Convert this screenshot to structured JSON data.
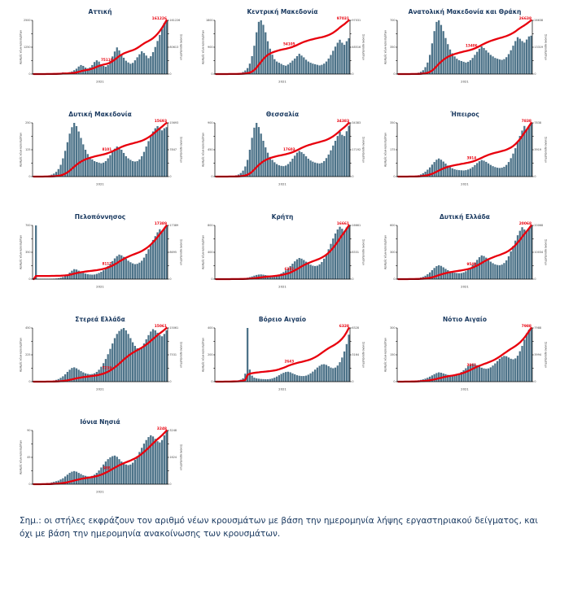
{
  "note": "Σημ.:  οι στήλες εκφράζουν τον αριθμό νέων κρουσμάτων με βάση την ημερομηνία λήψης εργαστηριακού δείγματος, και όχι με βάση την ημερομηνία ανακοίνωσης των κρουσμάτων.",
  "colors": {
    "bar": "#4d7389",
    "line": "#e8000d",
    "title": "#17375e",
    "axis": "#000000",
    "tick_text": "#444444",
    "label_red": "#e8000d"
  },
  "chart_data": [
    {
      "id": "attiki",
      "type": "bar+line",
      "title": "Αττική",
      "ylabel_left": "Αριθμός νέων κρουσμάτων",
      "ylabel_right": "Σύνολο κρουσμάτων",
      "xlabel": "2021",
      "total_label": "161226",
      "mid_label": "75110",
      "ylim_left": [
        0,
        2500
      ],
      "values": [
        2,
        3,
        2,
        4,
        5,
        8,
        10,
        12,
        15,
        20,
        30,
        45,
        60,
        80,
        70,
        60,
        90,
        120,
        180,
        250,
        350,
        420,
        380,
        300,
        260,
        310,
        420,
        560,
        640,
        580,
        460,
        380,
        340,
        420,
        610,
        820,
        1050,
        1240,
        1100,
        920,
        760,
        620,
        540,
        480,
        520,
        640,
        780,
        920,
        1060,
        980,
        860,
        740,
        830,
        1020,
        1260,
        1540,
        1820,
        2100,
        2380,
        2500
      ]
    },
    {
      "id": "kentriki-makedonia",
      "type": "bar+line",
      "title": "Κεντρική Μακεδονία",
      "ylabel_left": "Αριθμός νέων κρουσμάτων",
      "ylabel_right": "Σύνολο κρουσμάτων",
      "xlabel": "2021",
      "total_label": "97031",
      "mid_label": "54105",
      "ylim_left": [
        0,
        1800
      ],
      "values": [
        1,
        2,
        2,
        3,
        4,
        6,
        8,
        10,
        14,
        18,
        25,
        40,
        70,
        120,
        200,
        350,
        600,
        950,
        1400,
        1750,
        1800,
        1650,
        1400,
        1100,
        850,
        650,
        500,
        420,
        380,
        340,
        300,
        280,
        320,
        380,
        450,
        520,
        600,
        680,
        620,
        560,
        480,
        420,
        380,
        350,
        330,
        310,
        290,
        310,
        350,
        420,
        520,
        640,
        780,
        920,
        1050,
        1150,
        1050,
        980,
        1100,
        1200
      ]
    },
    {
      "id": "anatoliki-makedonia-thraki",
      "type": "bar+line",
      "title": "Ανατολική Μακεδονία και Θράκη",
      "ylabel_left": "Αριθμός νέων κρουσμάτων",
      "ylabel_right": "Σύνολο κρουσμάτων",
      "xlabel": "2021",
      "total_label": "26638",
      "mid_label": "13406",
      "ylim_left": [
        0,
        700
      ],
      "values": [
        0,
        1,
        1,
        2,
        2,
        3,
        5,
        8,
        12,
        18,
        30,
        50,
        90,
        150,
        250,
        400,
        560,
        680,
        700,
        640,
        560,
        470,
        390,
        320,
        270,
        230,
        200,
        180,
        170,
        160,
        150,
        160,
        180,
        210,
        250,
        290,
        330,
        360,
        340,
        310,
        280,
        250,
        230,
        210,
        200,
        190,
        185,
        195,
        220,
        260,
        310,
        370,
        430,
        480,
        460,
        430,
        410,
        450,
        490,
        500
      ]
    },
    {
      "id": "dytiki-makedonia",
      "type": "bar+line",
      "title": "Δυτική Μακεδονία",
      "ylabel_left": "Αριθμός νέων κρουσμάτων",
      "ylabel_right": "Σύνολο κρουσμάτων",
      "xlabel": "2021",
      "total_label": "15693",
      "mid_label": "8101",
      "ylim_left": [
        0,
        250
      ],
      "values": [
        0,
        0,
        1,
        1,
        2,
        3,
        4,
        6,
        9,
        14,
        22,
        35,
        55,
        85,
        120,
        160,
        200,
        230,
        250,
        235,
        210,
        180,
        150,
        125,
        105,
        90,
        80,
        72,
        68,
        65,
        62,
        65,
        72,
        85,
        100,
        115,
        130,
        140,
        135,
        125,
        110,
        95,
        85,
        78,
        72,
        70,
        72,
        80,
        95,
        115,
        140,
        165,
        190,
        210,
        225,
        235,
        225,
        215,
        225,
        230
      ]
    },
    {
      "id": "thessalia",
      "type": "bar+line",
      "title": "Θεσσαλία",
      "ylabel_left": "Αριθμός νέων κρουσμάτων",
      "ylabel_right": "Σύνολο κρουσμάτων",
      "xlabel": "2021",
      "total_label": "34383",
      "mid_label": "17603",
      "ylim_left": [
        0,
        900
      ],
      "values": [
        0,
        1,
        1,
        2,
        3,
        4,
        6,
        9,
        14,
        22,
        35,
        60,
        100,
        170,
        280,
        450,
        650,
        820,
        900,
        830,
        720,
        600,
        490,
        400,
        330,
        280,
        240,
        210,
        190,
        180,
        175,
        185,
        210,
        250,
        300,
        350,
        400,
        430,
        410,
        380,
        340,
        300,
        270,
        250,
        235,
        225,
        220,
        230,
        260,
        310,
        370,
        440,
        520,
        600,
        680,
        750,
        700,
        680,
        760,
        850
      ]
    },
    {
      "id": "ipeiros",
      "type": "bar+line",
      "title": "Ήπειρος",
      "ylabel_left": "Αριθμός νέων κρουσμάτων",
      "ylabel_right": "Σύνολο κρουσμάτων",
      "xlabel": "2021",
      "total_label": "7838",
      "mid_label": "3914",
      "ylim_left": [
        0,
        350
      ],
      "values": [
        0,
        0,
        1,
        1,
        1,
        2,
        3,
        4,
        6,
        9,
        14,
        22,
        32,
        45,
        60,
        78,
        95,
        110,
        118,
        110,
        98,
        85,
        72,
        62,
        54,
        48,
        44,
        42,
        41,
        40,
        42,
        46,
        52,
        62,
        75,
        88,
        100,
        108,
        104,
        96,
        86,
        76,
        68,
        62,
        58,
        56,
        58,
        64,
        76,
        95,
        120,
        150,
        185,
        225,
        265,
        300,
        330,
        310,
        330,
        350
      ]
    },
    {
      "id": "peloponnisos",
      "type": "bar+line",
      "title": "Πελοπόννησος",
      "ylabel_left": "Αριθμός νέων κρουσμάτων",
      "ylabel_right": "Σύνολο κρουσμάτων",
      "xlabel": "2021",
      "total_label": "17389",
      "mid_label": "8117",
      "ylim_left": [
        0,
        700
      ],
      "values": [
        5,
        700,
        4,
        3,
        2,
        2,
        3,
        4,
        5,
        6,
        8,
        12,
        18,
        28,
        42,
        60,
        85,
        110,
        130,
        125,
        110,
        95,
        82,
        72,
        65,
        60,
        58,
        60,
        68,
        80,
        95,
        115,
        140,
        170,
        200,
        235,
        270,
        300,
        320,
        310,
        290,
        265,
        240,
        220,
        205,
        195,
        200,
        215,
        240,
        280,
        330,
        390,
        450,
        510,
        560,
        610,
        650,
        620,
        660,
        700
      ]
    },
    {
      "id": "kriti",
      "type": "bar+line",
      "title": "Κρήτη",
      "ylabel_left": "Αριθμός νέων κρουσμάτων",
      "ylabel_right": "Σύνολο κρουσμάτων",
      "xlabel": "2021",
      "total_label": "16661",
      "mid_label": "6382",
      "ylim_left": [
        0,
        800
      ],
      "values": [
        0,
        0,
        1,
        1,
        1,
        2,
        2,
        3,
        4,
        5,
        7,
        9,
        12,
        16,
        22,
        30,
        40,
        52,
        62,
        68,
        70,
        66,
        60,
        55,
        52,
        50,
        52,
        58,
        68,
        85,
        105,
        130,
        160,
        195,
        230,
        265,
        295,
        315,
        305,
        285,
        260,
        235,
        215,
        200,
        195,
        200,
        220,
        255,
        305,
        370,
        445,
        525,
        605,
        680,
        740,
        780,
        750,
        720,
        770,
        800
      ]
    },
    {
      "id": "dytiki-ellada",
      "type": "bar+line",
      "title": "Δυτική Ελλάδα",
      "ylabel_left": "Αριθμός νέων κρουσμάτων",
      "ylabel_right": "Σύνολο κρουσμάτων",
      "xlabel": "2021",
      "total_label": "20068",
      "mid_label": "9540",
      "ylim_left": [
        0,
        600
      ],
      "values": [
        0,
        1,
        1,
        2,
        2,
        3,
        4,
        6,
        8,
        12,
        18,
        26,
        38,
        55,
        75,
        100,
        125,
        145,
        155,
        148,
        132,
        115,
        100,
        88,
        78,
        72,
        68,
        66,
        68,
        75,
        88,
        105,
        128,
        155,
        185,
        215,
        245,
        265,
        258,
        240,
        218,
        195,
        178,
        165,
        158,
        155,
        162,
        180,
        210,
        255,
        310,
        370,
        430,
        490,
        540,
        580,
        555,
        530,
        565,
        600
      ]
    },
    {
      "id": "sterea-ellada",
      "type": "bar+line",
      "title": "Στερεά Ελλάδα",
      "ylabel_left": "Αριθμός νέων κρουσμάτων",
      "ylabel_right": "Σύνολο κρουσμάτων",
      "xlabel": "2021",
      "total_label": "15061",
      "mid_label": "7230",
      "ylim_left": [
        0,
        450
      ],
      "values": [
        0,
        0,
        1,
        1,
        2,
        3,
        4,
        5,
        7,
        10,
        15,
        22,
        32,
        45,
        62,
        82,
        100,
        115,
        120,
        112,
        100,
        88,
        78,
        70,
        65,
        62,
        64,
        70,
        82,
        100,
        125,
        155,
        190,
        230,
        275,
        320,
        365,
        400,
        425,
        440,
        450,
        430,
        400,
        365,
        330,
        300,
        280,
        275,
        290,
        320,
        355,
        390,
        420,
        440,
        430,
        410,
        390,
        380,
        400,
        430
      ]
    },
    {
      "id": "voreio-aigaio",
      "type": "bar+line",
      "title": "Βόρειο Αιγαίο",
      "ylabel_left": "Αριθμός νέων κρουσμάτων",
      "ylabel_right": "Σύνολο κρουσμάτων",
      "xlabel": "2021",
      "total_label": "6328",
      "mid_label": "2643",
      "ylim_left": [
        0,
        400
      ],
      "values": [
        0,
        0,
        1,
        1,
        2,
        2,
        3,
        4,
        5,
        7,
        10,
        15,
        25,
        60,
        400,
        90,
        45,
        30,
        25,
        22,
        20,
        19,
        18,
        18,
        20,
        24,
        30,
        38,
        48,
        58,
        66,
        72,
        74,
        70,
        62,
        55,
        48,
        44,
        42,
        42,
        45,
        52,
        62,
        75,
        90,
        105,
        118,
        128,
        130,
        125,
        115,
        105,
        100,
        105,
        120,
        145,
        180,
        225,
        280,
        350
      ]
    },
    {
      "id": "notio-aigaio",
      "type": "bar+line",
      "title": "Νότιο Αιγαίο",
      "ylabel_left": "Αριθμός νέων κρουσμάτων",
      "ylabel_right": "Σύνολο κρουσμάτων",
      "xlabel": "2021",
      "total_label": "7988",
      "mid_label": "3861",
      "ylim_left": [
        0,
        300
      ],
      "values": [
        0,
        1,
        1,
        2,
        2,
        3,
        4,
        5,
        6,
        8,
        10,
        13,
        17,
        22,
        28,
        35,
        42,
        48,
        52,
        50,
        46,
        42,
        38,
        36,
        35,
        36,
        40,
        46,
        54,
        64,
        75,
        86,
        95,
        100,
        98,
        92,
        85,
        78,
        74,
        72,
        74,
        80,
        90,
        102,
        115,
        128,
        138,
        144,
        142,
        135,
        128,
        125,
        130,
        145,
        170,
        200,
        235,
        270,
        290,
        300
      ]
    },
    {
      "id": "ionia-nisia",
      "type": "bar+line",
      "title": "Ιόνια Νησιά",
      "ylabel_left": "Αριθμός νέων κρουσμάτων",
      "ylabel_right": "Σύνολο κρουσμάτων",
      "xlabel": "2021",
      "total_label": "3248",
      "mid_label": "988",
      "ylim_left": [
        0,
        90
      ],
      "values": [
        0,
        0,
        0,
        1,
        1,
        1,
        2,
        2,
        3,
        4,
        5,
        6,
        8,
        10,
        13,
        16,
        19,
        21,
        22,
        21,
        19,
        17,
        15,
        14,
        13,
        13,
        14,
        16,
        19,
        23,
        28,
        33,
        38,
        42,
        45,
        47,
        48,
        46,
        42,
        38,
        35,
        33,
        32,
        33,
        36,
        41,
        47,
        54,
        61,
        68,
        74,
        79,
        82,
        80,
        76,
        72,
        70,
        74,
        82,
        90
      ]
    }
  ]
}
